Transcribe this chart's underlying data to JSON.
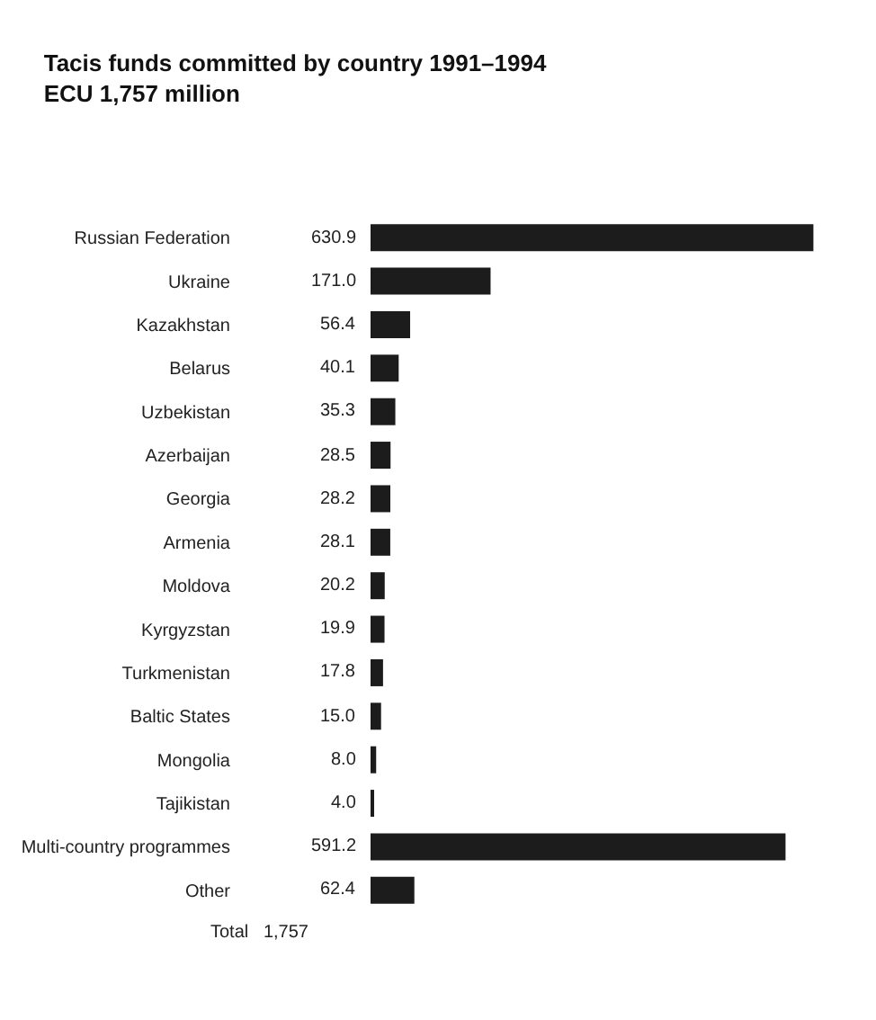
{
  "chart_data": {
    "type": "bar",
    "orientation": "horizontal",
    "title": "Tacis funds committed by country 1991–1994",
    "subtitle": "ECU 1,757 million",
    "categories": [
      "Russian Federation",
      "Ukraine",
      "Kazakhstan",
      "Belarus",
      "Uzbekistan",
      "Azerbaijan",
      "Georgia",
      "Armenia",
      "Moldova",
      "Kyrgyzstan",
      "Turkmenistan",
      "Baltic States",
      "Mongolia",
      "Tajikistan",
      "Multi-country programmes",
      "Other"
    ],
    "values": [
      630.9,
      171.0,
      56.4,
      40.1,
      35.3,
      28.5,
      28.2,
      28.1,
      20.2,
      19.9,
      17.8,
      15.0,
      8.0,
      4.0,
      591.2,
      62.4
    ],
    "value_labels": [
      "630.9",
      "171.0",
      "56.4",
      "40.1",
      "35.3",
      "28.5",
      "28.2",
      "28.1",
      "20.2",
      "19.9",
      "17.8",
      "15.0",
      "8.0",
      "4.0",
      "591.2",
      "62.4"
    ],
    "color": "#1c1c1c",
    "tick_labels": "y",
    "annotations": [
      "Total   1,757"
    ]
  }
}
